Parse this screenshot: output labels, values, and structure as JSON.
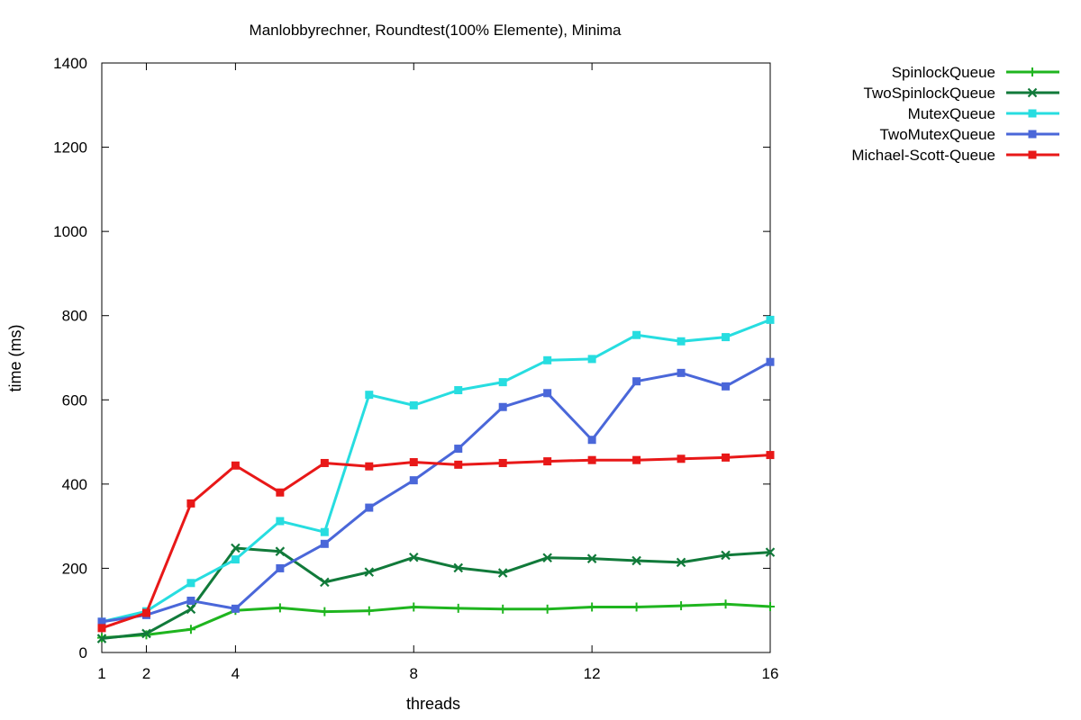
{
  "chart_data": {
    "type": "line",
    "title": "Manlobbyrechner, Roundtest(100% Elemente), Minima",
    "xlabel": "threads",
    "ylabel": "time (ms)",
    "xlim": [
      1,
      16
    ],
    "ylim": [
      0,
      1400
    ],
    "xticks": [
      1,
      2,
      4,
      8,
      12,
      16
    ],
    "yticks": [
      0,
      200,
      400,
      600,
      800,
      1000,
      1200,
      1400
    ],
    "grid": false,
    "legend_position": "outside-top-right",
    "x": [
      1,
      2,
      3,
      4,
      5,
      6,
      7,
      8,
      9,
      10,
      11,
      12,
      13,
      14,
      15,
      16
    ],
    "series": [
      {
        "name": "SpinlockQueue",
        "color": "#1fb51f",
        "marker": "plus",
        "values": [
          35,
          42,
          55,
          100,
          106,
          97,
          99,
          108,
          105,
          103,
          103,
          108,
          108,
          111,
          115,
          109
        ]
      },
      {
        "name": "TwoSpinlockQueue",
        "color": "#117a3a",
        "marker": "cross",
        "values": [
          33,
          45,
          103,
          248,
          240,
          167,
          191,
          226,
          201,
          189,
          225,
          223,
          218,
          214,
          231,
          238
        ]
      },
      {
        "name": "MutexQueue",
        "color": "#27dde0",
        "marker": "square",
        "values": [
          73,
          98,
          165,
          221,
          312,
          286,
          612,
          587,
          623,
          642,
          694,
          697,
          754,
          739,
          749,
          790
        ]
      },
      {
        "name": "TwoMutexQueue",
        "color": "#4a67d9",
        "marker": "square",
        "values": [
          73,
          89,
          123,
          104,
          200,
          258,
          344,
          409,
          484,
          583,
          616,
          505,
          644,
          664,
          632,
          690
        ]
      },
      {
        "name": "Michael-Scott-Queue",
        "color": "#e81818",
        "marker": "square",
        "values": [
          58,
          94,
          354,
          444,
          380,
          450,
          442,
          452,
          446,
          450,
          454,
          457,
          457,
          460,
          463,
          469
        ]
      }
    ]
  }
}
